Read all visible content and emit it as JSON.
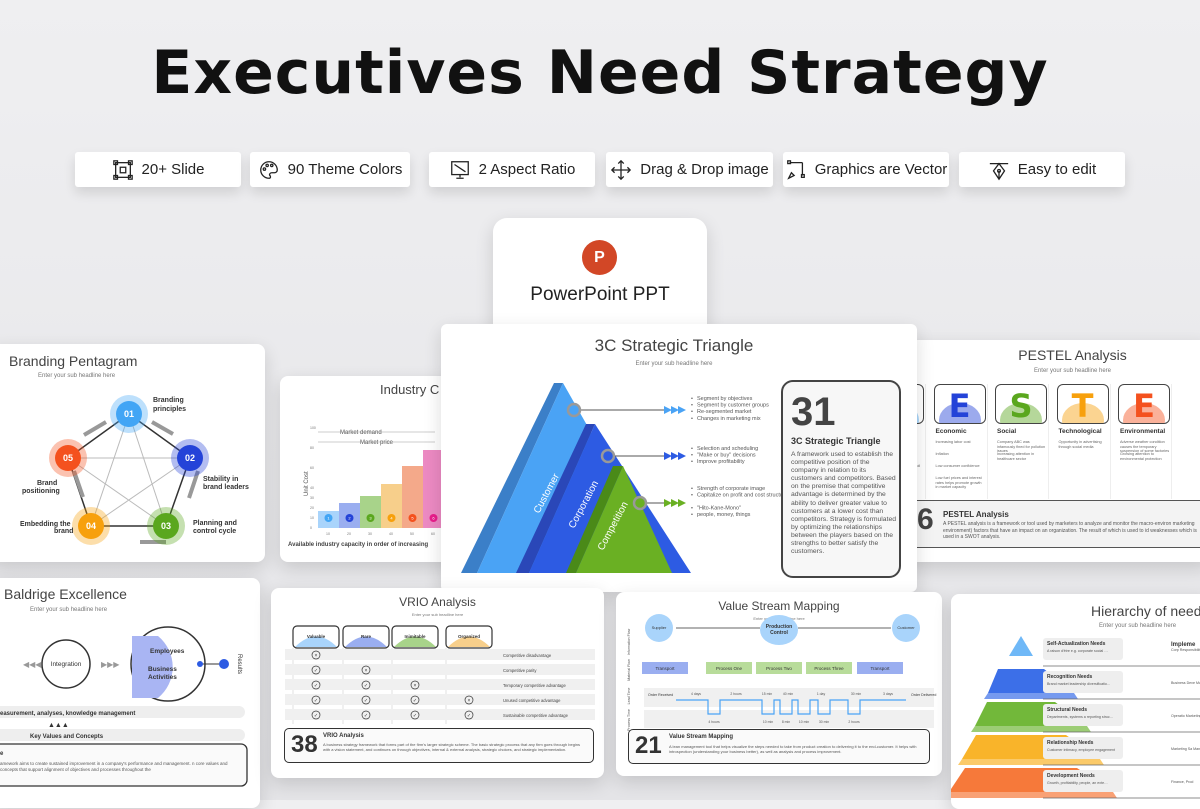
{
  "headline": "Executives Need Strategy",
  "features": [
    {
      "label": "20+ Slide",
      "icon": "slide-frame-icon"
    },
    {
      "label": "90 Theme Colors",
      "icon": "palette-icon"
    },
    {
      "label": "2 Aspect Ratio",
      "icon": "monitor-icon"
    },
    {
      "label": "Drag & Drop image",
      "icon": "move-arrows-icon"
    },
    {
      "label": "Graphics are Vector",
      "icon": "vector-pen-icon"
    },
    {
      "label": "Easy to edit",
      "icon": "pen-nib-icon"
    }
  ],
  "ppt": {
    "label": "PowerPoint PPT",
    "logo_letter": "P",
    "color": "#d24726"
  },
  "sub": "Enter your sub headline here",
  "triangle": {
    "title": "3C Strategic Triangle",
    "number": "31",
    "box_title": "3C Strategic Triangle",
    "box_text": "A framework used to establish the competitive position of the company in relation to its customers and competitors. Based on the premise that competitive advantage is determined by the ability to deliver greater value to customers at a lower cost than competitors. Strategy is formulated by optimizing the relationships between the players based on the strengths to better satisfy the customers.",
    "layers": [
      {
        "name": "Customer",
        "color": "#4aa3f5"
      },
      {
        "name": "Corporation",
        "color": "#2d5be3"
      },
      {
        "name": "Competition",
        "color": "#6ab023"
      }
    ],
    "bullets": [
      [
        "Segment by objectives",
        "Segment by customer groups",
        "Re-segmented market",
        "Changes in marketing mix"
      ],
      [
        "Selection and scheduling",
        "\"Make or buy\" decisions",
        "Improve profitability"
      ],
      [
        "Strength of corporate image",
        "Capitalize on profit and cost structure differences",
        "\"Hito-Kane-Mono\"",
        "people, money, things"
      ]
    ]
  },
  "pentagram": {
    "title": "Branding Pentagram",
    "nodes": [
      {
        "num": "01",
        "label": "Branding principles",
        "color": "#42a5f5"
      },
      {
        "num": "02",
        "label": "Stability in brand leaders",
        "color": "#2443d8"
      },
      {
        "num": "03",
        "label": "Planning and control cycle",
        "color": "#5aa71e"
      },
      {
        "num": "04",
        "label": "Embedding the brand",
        "color": "#f7a00c"
      },
      {
        "num": "05",
        "label": "Brand positioning",
        "color": "#f4511e"
      }
    ]
  },
  "industry": {
    "title": "Industry C",
    "market_demand": "Market demand",
    "market_price": "Market price",
    "ylabel": "Unit Cost",
    "xlabel": "Available industry capacity in order of increasing",
    "yticks": [
      "100",
      "80",
      "60",
      "40",
      "30",
      "20",
      "10",
      "0"
    ],
    "xticks": [
      "10",
      "20",
      "30",
      "40",
      "50",
      "60",
      "70",
      "80"
    ],
    "bars": [
      {
        "n": "1",
        "v": 17
      },
      {
        "n": "2",
        "v": 25
      },
      {
        "n": "3",
        "v": 32
      },
      {
        "n": "4",
        "v": 44
      },
      {
        "n": "5",
        "v": 62
      },
      {
        "n": "6",
        "v": 78
      }
    ]
  },
  "pestel": {
    "title": "PESTEL Analysis",
    "number": "6",
    "box_title": "PESTEL Analysis",
    "box_text": "A PESTEL analysis is a framework or tool used by marketers to analyze and monitor the macro-environ marketing environment) factors that have an impact on an organization. The result of which is used to id weaknesses which is used in a SWOT analysis.",
    "items": [
      {
        "letter": "P",
        "name": "Political",
        "color": "#42a5f5",
        "notes": [
          "... political healthcare",
          "... overnments healthcare",
          "... decisions political turmoil"
        ]
      },
      {
        "letter": "E",
        "name": "Economic",
        "color": "#2443d8",
        "notes": [
          "Increasing labor cost",
          "Inflation",
          "Low consumer confidence",
          "Low fuel prices and interest rates helps promote growth in market capacity"
        ]
      },
      {
        "letter": "S",
        "name": "Social",
        "color": "#5aa71e",
        "notes": [
          "Company ABC was infamously fined for pollution issues",
          "Increasing attention in healthcare sector"
        ]
      },
      {
        "letter": "T",
        "name": "Technological",
        "color": "#f7a00c",
        "notes": [
          "Opportunity in advertising through social media"
        ]
      },
      {
        "letter": "E",
        "name": "Environmental",
        "color": "#f4511e",
        "notes": [
          "Adverse weather condition causes the temporary suspension of some factories",
          "Growing attention to environmental protection"
        ]
      }
    ]
  },
  "baldrige": {
    "title": "Baldrige Excellence",
    "integration": "Integration",
    "employees": "Employees",
    "business": "Business Activities",
    "results": "Results",
    "measurement": "easurement, analyses, knowledge management",
    "key_values": "Key Values and Concepts",
    "box_title": "e",
    "box_text": "amework aims to create sustained improvement in a company's performance and management. n core values and concepts that support alignment of objectives and processes throughout the"
  },
  "vrio": {
    "title": "VRIO Analysis",
    "number": "38",
    "box_title": "VRIO Analysis",
    "box_text": "A business strategy framework that forms part of the firm's larger strategic scheme. The basic strategic process that any firm goes through begins with a vision statement, and continues on through objectives, internal & external analysis, strategic choices, and strategic implementation.",
    "columns": [
      {
        "name": "Valuable",
        "color": "#a9d4fb"
      },
      {
        "name": "Rare",
        "color": "#9aaef0"
      },
      {
        "name": "Inimitable",
        "color": "#a8d38a"
      },
      {
        "name": "Organized",
        "color": "#f7cf8b"
      }
    ],
    "rows": [
      {
        "marks": [
          "x",
          "",
          "",
          ""
        ],
        "result": "Competitive disadvantage"
      },
      {
        "marks": [
          "v",
          "x",
          "",
          ""
        ],
        "result": "Competitive parity"
      },
      {
        "marks": [
          "v",
          "v",
          "x",
          ""
        ],
        "result": "Temporary competitive advantage"
      },
      {
        "marks": [
          "v",
          "v",
          "v",
          "x"
        ],
        "result": "Unused competitive advantage"
      },
      {
        "marks": [
          "v",
          "v",
          "v",
          "v"
        ],
        "result": "Sustainable competitive advantage"
      }
    ]
  },
  "vsm": {
    "title": "Value Stream Mapping",
    "number": "21",
    "box_title": "Value Stream Mapping",
    "box_text": "A lean management tool that helps visualize the steps needed to take from product creation to delivering it to the end-customer. It helps with introspection (understanding your business better), as well as analysis and process improvement.",
    "rows": [
      "Information Flow",
      "Material Flow",
      "Lead Time",
      "Process Time"
    ],
    "supplier": "Supplier",
    "control": "Production Control",
    "customer": "Customer",
    "steps": [
      "Transport",
      "Process One",
      "Process Two",
      "Process Three",
      "Transport"
    ],
    "order_received": "Order Received",
    "order_delivered": "Order Delivered",
    "lead": [
      "4 days",
      "2 hours",
      "15 min",
      "40 min",
      "1 day",
      "30 min",
      "3 days"
    ],
    "process": [
      "4 hours",
      "10 min",
      "8 min",
      "10 min",
      "30 min",
      "2 hours"
    ]
  },
  "hierarchy": {
    "title": "Hierarchy of need",
    "impl": "Impleme",
    "levels": [
      {
        "name": "Self-Actualization Needs",
        "desc": "A raison d'être e.g. corporate social responsibility, thought leadership",
        "impl": "Corp Responsibilit",
        "color": "#6fb8f7"
      },
      {
        "name": "Recognition Needs",
        "desc": "Brand market leadership diversification, expansion",
        "impl": "Business Deve Marketing, Res",
        "color": "#3c6fe8"
      },
      {
        "name": "Structural Needs",
        "desc": "Departments, systems a reporting structure",
        "impl": "Operatio Marketing Pu",
        "color": "#72b83a"
      },
      {
        "name": "Relationship Needs",
        "desc": "Customer intimacy, employee engagement",
        "impl": "Marketing Sa Mana",
        "color": "#f9b42a"
      },
      {
        "name": "Development Needs",
        "desc": "Growth, profitability, people, an extended offer, marketing",
        "impl": "Finance, Prod",
        "color": "#f6793a"
      }
    ]
  }
}
